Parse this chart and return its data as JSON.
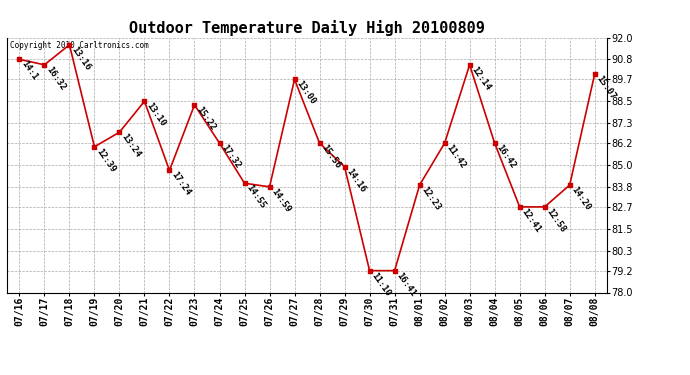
{
  "title": "Outdoor Temperature Daily High 20100809",
  "copyright": "Copyright 2010 Carltronics.com",
  "dates": [
    "07/16",
    "07/17",
    "07/18",
    "07/19",
    "07/20",
    "07/21",
    "07/22",
    "07/23",
    "07/24",
    "07/25",
    "07/26",
    "07/27",
    "07/28",
    "07/29",
    "07/30",
    "07/31",
    "08/01",
    "08/02",
    "08/03",
    "08/04",
    "08/05",
    "08/06",
    "08/07",
    "08/08"
  ],
  "times": [
    "14:1",
    "16:32",
    "13:16",
    "12:39",
    "13:24",
    "13:10",
    "17:24",
    "15:22",
    "17:32",
    "14:55",
    "14:59",
    "13:00",
    "15:56",
    "14:16",
    "11:10",
    "16:41",
    "12:23",
    "11:42",
    "12:14",
    "16:42",
    "12:41",
    "12:58",
    "14:20",
    "15:07"
  ],
  "temps": [
    90.8,
    90.5,
    91.6,
    86.0,
    86.8,
    88.5,
    84.7,
    88.3,
    86.2,
    84.0,
    83.8,
    89.7,
    86.2,
    84.9,
    79.2,
    79.2,
    83.9,
    86.2,
    90.5,
    86.2,
    82.7,
    82.7,
    83.9,
    90.0
  ],
  "ylim": [
    78.0,
    92.0
  ],
  "yticks": [
    78.0,
    79.2,
    80.3,
    81.5,
    82.7,
    83.8,
    85.0,
    86.2,
    87.3,
    88.5,
    89.7,
    90.8,
    92.0
  ],
  "line_color": "#cc0000",
  "marker_color": "#cc0000",
  "bg_color": "#ffffff",
  "grid_color": "#aaaaaa",
  "label_color": "#000000",
  "title_fontsize": 11,
  "tick_fontsize": 7,
  "annotation_fontsize": 6.5
}
